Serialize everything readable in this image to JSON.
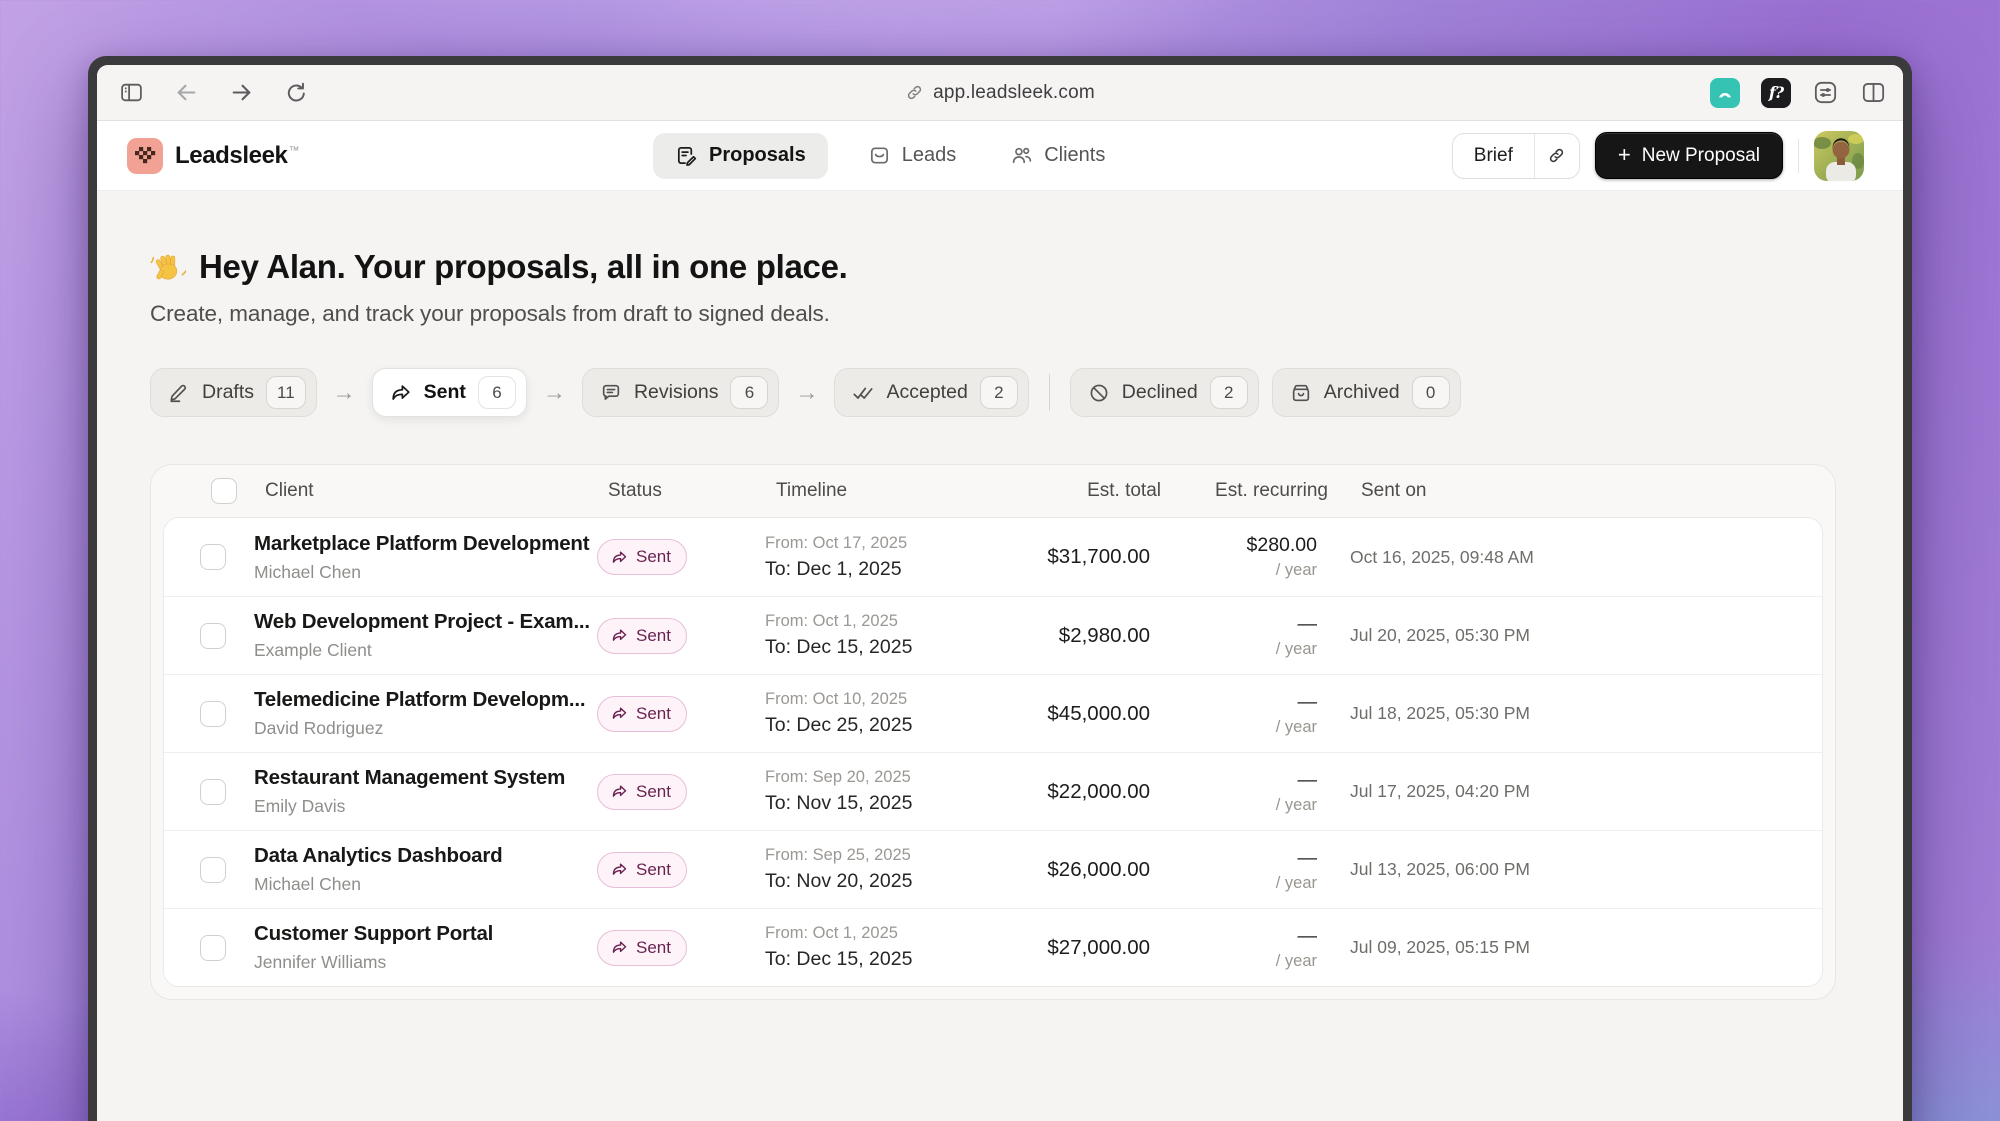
{
  "browser": {
    "url": "app.leadsleek.com",
    "extensions": {
      "f_badge": "f?"
    }
  },
  "header": {
    "brand": "Leadsleek",
    "trademark": "TM",
    "nav": [
      {
        "label": "Proposals",
        "icon": "proposals-icon",
        "active": true
      },
      {
        "label": "Leads",
        "icon": "leads-icon",
        "active": false
      },
      {
        "label": "Clients",
        "icon": "clients-icon",
        "active": false
      }
    ],
    "brief_label": "Brief",
    "new_proposal_plus": "+",
    "new_proposal_label": "New Proposal"
  },
  "hero": {
    "emoji": "👋",
    "title": "Hey Alan. Your proposals, all in one place.",
    "subtitle": "Create, manage, and track your proposals from draft to signed deals."
  },
  "pipeline_arrow": "→",
  "pipeline": [
    {
      "label": "Drafts",
      "count": "11",
      "icon": "pencil-icon",
      "active": false,
      "separator_after": "arrow"
    },
    {
      "label": "Sent",
      "count": "6",
      "icon": "send-icon",
      "active": true,
      "separator_after": "arrow"
    },
    {
      "label": "Revisions",
      "count": "6",
      "icon": "comment-icon",
      "active": false,
      "separator_after": "arrow"
    },
    {
      "label": "Accepted",
      "count": "2",
      "icon": "double-check-icon",
      "active": false,
      "separator_after": "divider"
    },
    {
      "label": "Declined",
      "count": "2",
      "icon": "blocked-icon",
      "active": false,
      "separator_after": "none"
    },
    {
      "label": "Archived",
      "count": "0",
      "icon": "archive-icon",
      "active": false,
      "separator_after": "none"
    }
  ],
  "table": {
    "columns": {
      "client": "Client",
      "status": "Status",
      "timeline": "Timeline",
      "est_total": "Est. total",
      "est_recurring": "Est. recurring",
      "sent_on": "Sent on"
    },
    "rows": [
      {
        "title": "Marketplace Platform Development",
        "client": "Michael Chen",
        "status": "Sent",
        "timeline_from": "From: Oct 17, 2025",
        "timeline_to": "To: Dec 1, 2025",
        "est_total": "$31,700.00",
        "est_recurring": "$280.00",
        "recurring_unit": "/ year",
        "sent_on": "Oct 16, 2025, 09:48 AM"
      },
      {
        "title": "Web Development Project - Exam...",
        "client": "Example Client",
        "status": "Sent",
        "timeline_from": "From: Oct 1, 2025",
        "timeline_to": "To: Dec 15, 2025",
        "est_total": "$2,980.00",
        "est_recurring": "—",
        "recurring_unit": "/ year",
        "sent_on": "Jul 20, 2025, 05:30 PM"
      },
      {
        "title": "Telemedicine Platform Developm...",
        "client": "David Rodriguez",
        "status": "Sent",
        "timeline_from": "From: Oct 10, 2025",
        "timeline_to": "To: Dec 25, 2025",
        "est_total": "$45,000.00",
        "est_recurring": "—",
        "recurring_unit": "/ year",
        "sent_on": "Jul 18, 2025, 05:30 PM"
      },
      {
        "title": "Restaurant Management System",
        "client": "Emily Davis",
        "status": "Sent",
        "timeline_from": "From: Sep 20, 2025",
        "timeline_to": "To: Nov 15, 2025",
        "est_total": "$22,000.00",
        "est_recurring": "—",
        "recurring_unit": "/ year",
        "sent_on": "Jul 17, 2025, 04:20 PM"
      },
      {
        "title": "Data Analytics Dashboard",
        "client": "Michael Chen",
        "status": "Sent",
        "timeline_from": "From: Sep 25, 2025",
        "timeline_to": "To: Nov 20, 2025",
        "est_total": "$26,000.00",
        "est_recurring": "—",
        "recurring_unit": "/ year",
        "sent_on": "Jul 13, 2025, 06:00 PM"
      },
      {
        "title": "Customer Support Portal",
        "client": "Jennifer Williams",
        "status": "Sent",
        "timeline_from": "From: Oct 1, 2025",
        "timeline_to": "To: Dec 15, 2025",
        "est_total": "$27,000.00",
        "est_recurring": "—",
        "recurring_unit": "/ year",
        "sent_on": "Jul 09, 2025, 05:15 PM"
      }
    ]
  },
  "colors": {
    "badge_text": "#6a2350",
    "badge_border": "#e8bed9",
    "badge_bg": "#fdf3f9",
    "new_proposal_bg": "#161617",
    "logo_bg": "#f2a294",
    "teal_extension": "#35c3b4",
    "page_bg": "#f5f4f2"
  }
}
